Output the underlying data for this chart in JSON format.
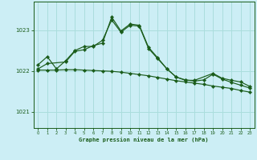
{
  "title": "Graphe pression niveau de la mer (hPa)",
  "background_color": "#cceef5",
  "grid_color": "#aadddd",
  "line_color": "#1a5c1a",
  "xlim": [
    -0.5,
    23.5
  ],
  "ylim": [
    1020.6,
    1023.7
  ],
  "yticks": [
    1021,
    1022,
    1023
  ],
  "xticks": [
    0,
    1,
    2,
    3,
    4,
    5,
    6,
    7,
    8,
    9,
    10,
    11,
    12,
    13,
    14,
    15,
    16,
    17,
    18,
    19,
    20,
    21,
    22,
    23
  ],
  "series1_x": [
    0,
    1,
    2,
    3,
    4,
    5,
    6,
    7,
    8,
    9,
    10,
    11,
    12,
    13,
    14,
    15,
    16,
    17,
    18,
    19,
    20,
    21,
    22,
    23
  ],
  "series1_y": [
    1022.15,
    1022.35,
    1022.05,
    1022.25,
    1022.5,
    1022.6,
    1022.6,
    1022.75,
    1023.25,
    1022.95,
    1023.12,
    1023.1,
    1022.55,
    1022.3,
    1022.05,
    1021.85,
    1021.78,
    1021.75,
    1021.78,
    1021.92,
    1021.8,
    1021.72,
    1021.65,
    1021.58
  ],
  "series2_x": [
    0,
    1,
    2,
    3,
    4,
    5,
    6,
    7,
    8,
    9,
    10,
    11,
    12,
    13,
    14,
    15,
    16,
    17,
    18,
    19,
    20,
    21,
    22,
    23
  ],
  "series2_y": [
    1022.02,
    1022.02,
    1022.02,
    1022.03,
    1022.03,
    1022.02,
    1022.01,
    1022.0,
    1021.99,
    1021.97,
    1021.94,
    1021.91,
    1021.88,
    1021.84,
    1021.8,
    1021.76,
    1021.73,
    1021.7,
    1021.67,
    1021.63,
    1021.6,
    1021.57,
    1021.52,
    1021.48
  ],
  "series3_x": [
    0,
    1,
    3,
    4,
    5,
    6,
    7,
    8,
    9,
    10,
    11,
    12,
    13,
    14,
    15,
    16,
    17,
    19,
    20,
    21,
    22,
    23
  ],
  "series3_y": [
    1022.05,
    1022.18,
    1022.22,
    1022.48,
    1022.52,
    1022.62,
    1022.68,
    1023.32,
    1022.98,
    1023.15,
    1023.12,
    1022.58,
    1022.32,
    1022.05,
    1021.85,
    1021.77,
    1021.77,
    1021.94,
    1021.82,
    1021.77,
    1021.73,
    1021.62
  ]
}
